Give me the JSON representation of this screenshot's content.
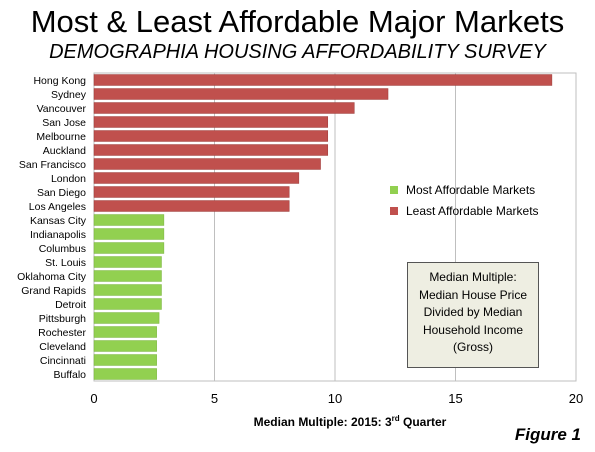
{
  "title": "Most & Least Affordable Major Markets",
  "subtitle": "DEMOGRAPHIA HOUSING AFFORDABILITY SURVEY",
  "figure_label": "Figure 1",
  "xlabel_main": "Median Multiple: 2015: 3",
  "xlabel_sup": "rd",
  "xlabel_end": " Quarter",
  "note_lines": [
    "Median Multiple:",
    "Median House Price",
    "Divided by Median",
    "Household Income",
    "(Gross)"
  ],
  "legend": [
    {
      "label": "Most Affordable Markets",
      "color": "#92d050"
    },
    {
      "label": "Least Affordable Markets",
      "color": "#c0504d"
    }
  ],
  "chart_data": {
    "type": "bar",
    "orientation": "horizontal",
    "xlim": [
      0,
      20
    ],
    "xticks": [
      0,
      5,
      10,
      15,
      20
    ],
    "grid": true,
    "legend_position": "right",
    "categories": [
      "Hong Kong",
      "Sydney",
      "Vancouver",
      "San Jose",
      "Melbourne",
      "Auckland",
      "San Francisco",
      "London",
      "San Diego",
      "Los Angeles",
      "Kansas City",
      "Indianapolis",
      "Columbus",
      "St. Louis",
      "Oklahoma City",
      "Grand Rapids",
      "Detroit",
      "Pittsburgh",
      "Rochester",
      "Cleveland",
      "Cincinnati",
      "Buffalo"
    ],
    "values": [
      19.0,
      12.2,
      10.8,
      9.7,
      9.7,
      9.7,
      9.4,
      8.5,
      8.1,
      8.1,
      2.9,
      2.9,
      2.9,
      2.8,
      2.8,
      2.8,
      2.8,
      2.7,
      2.6,
      2.6,
      2.6,
      2.6
    ],
    "groups": [
      "least",
      "least",
      "least",
      "least",
      "least",
      "least",
      "least",
      "least",
      "least",
      "least",
      "most",
      "most",
      "most",
      "most",
      "most",
      "most",
      "most",
      "most",
      "most",
      "most",
      "most",
      "most"
    ],
    "colors": {
      "least": "#c0504d",
      "most": "#92d050"
    }
  }
}
